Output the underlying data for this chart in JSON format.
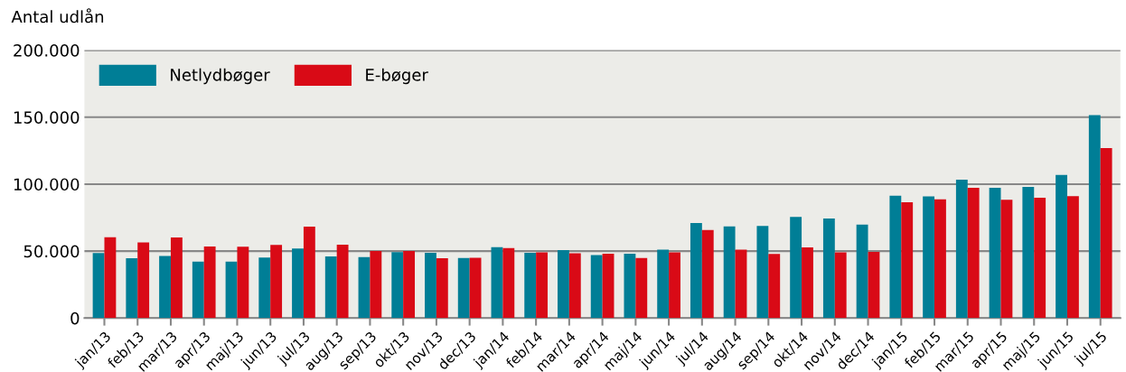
{
  "chart_data": {
    "type": "bar",
    "ylabel": "Antal udlån",
    "categories": [
      "jan/13",
      "feb/13",
      "mar/13",
      "apr/13",
      "maj/13",
      "jun/13",
      "jul/13",
      "aug/13",
      "sep/13",
      "okt/13",
      "nov/13",
      "dec/13",
      "jan/14",
      "feb/14",
      "mar/14",
      "apr/14",
      "maj/14",
      "jun/14",
      "jul/14",
      "aug/14",
      "sep/14",
      "okt/14",
      "nov/14",
      "dec/14",
      "jan/15",
      "feb/15",
      "mar/15",
      "apr/15",
      "maj/15",
      "jun/15",
      "jul/15"
    ],
    "series": [
      {
        "name": "Netlydbøger",
        "color": "#007e96",
        "values": [
          48500,
          44700,
          46300,
          42100,
          42100,
          45200,
          51900,
          46100,
          45600,
          49200,
          48800,
          44900,
          53000,
          48800,
          50800,
          47000,
          48100,
          51000,
          70900,
          68400,
          68700,
          75600,
          74300,
          69800,
          91300,
          90800,
          103300,
          97300,
          98000,
          106900,
          151600
        ]
      },
      {
        "name": "E-bøger",
        "color": "#d90a16",
        "values": [
          60400,
          56400,
          60200,
          53500,
          53200,
          54600,
          68200,
          54800,
          50100,
          50100,
          44700,
          45000,
          52300,
          49000,
          48300,
          48100,
          44900,
          49000,
          65800,
          51000,
          47800,
          52800,
          49000,
          49400,
          86400,
          88600,
          97300,
          88400,
          89900,
          91000,
          127000
        ]
      }
    ],
    "ylim": [
      0,
      200000
    ],
    "yticks": [
      {
        "value": 0,
        "label": "0"
      },
      {
        "value": 50000,
        "label": "50.000"
      },
      {
        "value": 100000,
        "label": "100.000"
      },
      {
        "value": 150000,
        "label": "150.000"
      },
      {
        "value": 200000,
        "label": "200.000"
      }
    ],
    "grid": "y",
    "legend": "top left"
  }
}
